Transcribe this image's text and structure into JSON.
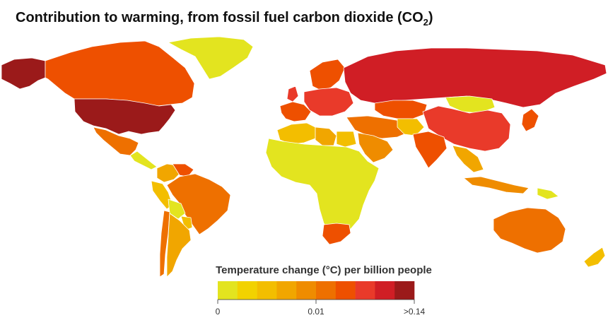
{
  "title": "Contribution to warming, from fossil fuel carbon dioxide (CO",
  "title_subscript": "2",
  "title_suffix": ")",
  "legend": {
    "title": "Temperature change (°C) per billion people",
    "colors": [
      "#e3e41f",
      "#f2d200",
      "#f3be00",
      "#f1a600",
      "#ef8c00",
      "#ee7000",
      "#ee5000",
      "#e93a2a",
      "#d01e25",
      "#9b1a1a"
    ],
    "tick_labels": [
      "0",
      "0.01",
      ">0.14"
    ]
  },
  "regions": [
    {
      "name": "Alaska",
      "color": "#9b1a1a"
    },
    {
      "name": "Canada",
      "color": "#ee5000"
    },
    {
      "name": "United States",
      "color": "#9b1a1a"
    },
    {
      "name": "Greenland",
      "color": "#e3e41f"
    },
    {
      "name": "Mexico",
      "color": "#ee7000"
    },
    {
      "name": "Central America",
      "color": "#e3e41f"
    },
    {
      "name": "Colombia",
      "color": "#f1a600"
    },
    {
      "name": "Venezuela",
      "color": "#ee5000"
    },
    {
      "name": "Peru",
      "color": "#f3be00"
    },
    {
      "name": "Brazil",
      "color": "#ee7000"
    },
    {
      "name": "Bolivia",
      "color": "#e3e41f"
    },
    {
      "name": "Paraguay",
      "color": "#f3be00"
    },
    {
      "name": "Chile",
      "color": "#ee7000"
    },
    {
      "name": "Argentina",
      "color": "#f1a600"
    },
    {
      "name": "Western Europe",
      "color": "#ee5000"
    },
    {
      "name": "United Kingdom",
      "color": "#e93a2a"
    },
    {
      "name": "Scandinavia",
      "color": "#ee5000"
    },
    {
      "name": "Eastern Europe",
      "color": "#e93a2a"
    },
    {
      "name": "Russia",
      "color": "#d01e25"
    },
    {
      "name": "Kazakhstan",
      "color": "#ee5000"
    },
    {
      "name": "Mongolia",
      "color": "#e3e41f"
    },
    {
      "name": "China",
      "color": "#e93a2a"
    },
    {
      "name": "Japan",
      "color": "#ee5000"
    },
    {
      "name": "Middle East",
      "color": "#ee7000"
    },
    {
      "name": "Arabian Peninsula",
      "color": "#ef8c00"
    },
    {
      "name": "Central Asia",
      "color": "#f3be00"
    },
    {
      "name": "India",
      "color": "#ee5000"
    },
    {
      "name": "Southeast Asia",
      "color": "#f1a600"
    },
    {
      "name": "Indonesia",
      "color": "#ef8c00"
    },
    {
      "name": "North Africa",
      "color": "#f3be00"
    },
    {
      "name": "Libya",
      "color": "#f1a600"
    },
    {
      "name": "Egypt",
      "color": "#f3be00"
    },
    {
      "name": "Africa",
      "color": "#e3e41f"
    },
    {
      "name": "South Africa",
      "color": "#ee5000"
    },
    {
      "name": "Australia",
      "color": "#ee7000"
    },
    {
      "name": "New Zealand",
      "color": "#f3be00"
    },
    {
      "name": "Papua New Guinea",
      "color": "#e3e41f"
    }
  ]
}
